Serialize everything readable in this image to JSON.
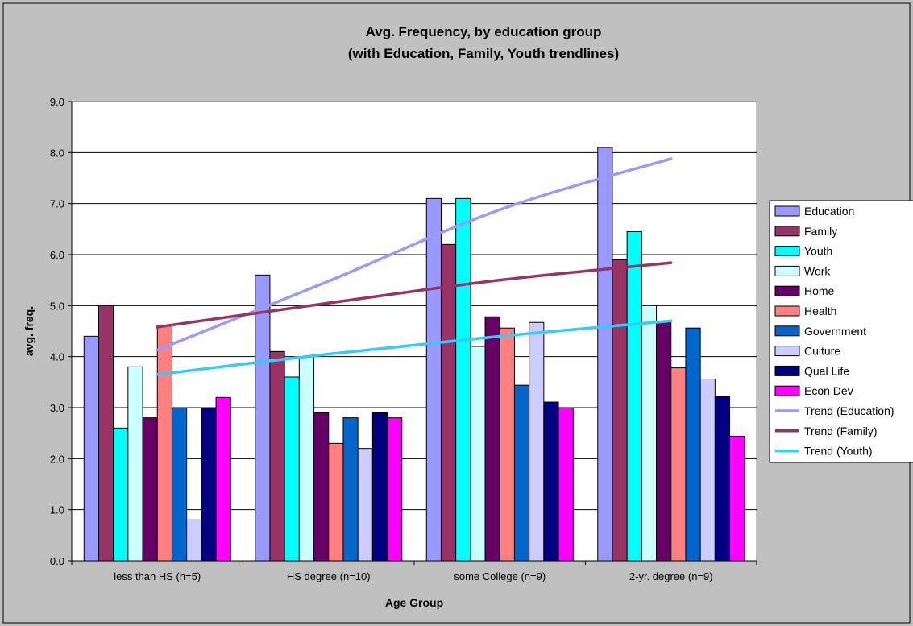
{
  "chart_data": {
    "type": "bar",
    "title": [
      "Avg. Frequency, by education group",
      "(with Education, Family, Youth trendlines)"
    ],
    "xlabel": "Age Group",
    "ylabel": "avg. freq.",
    "ylim": [
      0,
      9
    ],
    "y_ticks": [
      "0.0",
      "1.0",
      "2.0",
      "3.0",
      "4.0",
      "5.0",
      "6.0",
      "7.0",
      "8.0",
      "9.0"
    ],
    "grid": true,
    "legend_position": "right",
    "categories": [
      "less than HS (n=5)",
      "HS degree (n=10)",
      "some College (n=9)",
      "2-yr. degree (n=9)"
    ],
    "series": [
      {
        "name": "Education",
        "color": "#9999ff",
        "values": [
          4.4,
          5.6,
          7.1,
          8.1
        ]
      },
      {
        "name": "Family",
        "color": "#993366",
        "values": [
          5.0,
          4.1,
          6.2,
          5.9
        ]
      },
      {
        "name": "Youth",
        "color": "#00ffff",
        "values": [
          2.6,
          3.6,
          7.1,
          6.45
        ]
      },
      {
        "name": "Work",
        "color": "#ccffff",
        "values": [
          3.8,
          4.0,
          4.2,
          5.0
        ]
      },
      {
        "name": "Home",
        "color": "#660066",
        "values": [
          2.8,
          2.9,
          4.78,
          4.67
        ]
      },
      {
        "name": "Health",
        "color": "#ff8080",
        "values": [
          4.6,
          2.3,
          4.56,
          3.78
        ]
      },
      {
        "name": "Government",
        "color": "#0066cc",
        "values": [
          3.0,
          2.8,
          3.44,
          4.56
        ]
      },
      {
        "name": "Culture",
        "color": "#ccccff",
        "values": [
          0.8,
          2.2,
          4.67,
          3.56
        ]
      },
      {
        "name": "Qual Life",
        "color": "#000080",
        "values": [
          3.0,
          2.9,
          3.11,
          3.22
        ]
      },
      {
        "name": "Econ Dev",
        "color": "#ff00ff",
        "values": [
          3.2,
          2.8,
          3.0,
          2.44
        ]
      }
    ],
    "trendlines": [
      {
        "name": "Trend (Education)",
        "color": "#9999ff",
        "values": [
          4.13,
          5.48,
          6.88,
          7.88
        ]
      },
      {
        "name": "Trend (Family)",
        "color": "#993366",
        "values": [
          4.58,
          5.05,
          5.5,
          5.84
        ]
      },
      {
        "name": "Trend (Youth)",
        "color": "#33ccff",
        "values": [
          3.65,
          4.05,
          4.4,
          4.7
        ]
      }
    ]
  }
}
